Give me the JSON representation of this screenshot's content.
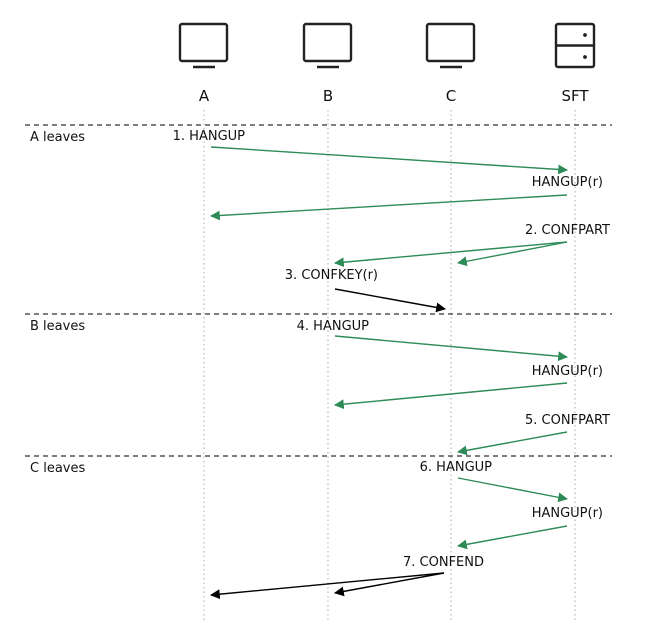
{
  "actors": [
    {
      "id": "A",
      "label": "A",
      "icon": "monitor-icon"
    },
    {
      "id": "B",
      "label": "B",
      "icon": "monitor-icon"
    },
    {
      "id": "C",
      "label": "C",
      "icon": "monitor-icon"
    },
    {
      "id": "SFT",
      "label": "SFT",
      "icon": "server-icon"
    }
  ],
  "sections": [
    {
      "label": "A leaves"
    },
    {
      "label": "B leaves"
    },
    {
      "label": "C leaves"
    }
  ],
  "messages": [
    {
      "label": "1. HANGUP",
      "from": "A",
      "to": "SFT",
      "color": "#2e8b57"
    },
    {
      "label": "HANGUP(r)",
      "from": "SFT",
      "to": "A",
      "color": "#2e8b57"
    },
    {
      "label": "2. CONFPART",
      "from": "SFT",
      "to": "B",
      "color": "#2e8b57"
    },
    {
      "label": "",
      "from": "SFT",
      "to": "C",
      "color": "#2e8b57"
    },
    {
      "label": "3. CONFKEY(r)",
      "from": "B",
      "to": "C",
      "color": "#000000"
    },
    {
      "label": "4. HANGUP",
      "from": "B",
      "to": "SFT",
      "color": "#2e8b57"
    },
    {
      "label": "HANGUP(r)",
      "from": "SFT",
      "to": "B",
      "color": "#2e8b57"
    },
    {
      "label": "5. CONFPART",
      "from": "SFT",
      "to": "C",
      "color": "#2e8b57"
    },
    {
      "label": "6. HANGUP",
      "from": "C",
      "to": "SFT",
      "color": "#2e8b57"
    },
    {
      "label": "HANGUP(r)",
      "from": "SFT",
      "to": "C",
      "color": "#2e8b57"
    },
    {
      "label": "7. CONFEND",
      "from": "C",
      "to": "A",
      "color": "#000000"
    },
    {
      "label": "",
      "from": "C",
      "to": "B",
      "color": "#000000"
    }
  ],
  "colors": {
    "green": "#2e8b57",
    "black": "#000000"
  }
}
